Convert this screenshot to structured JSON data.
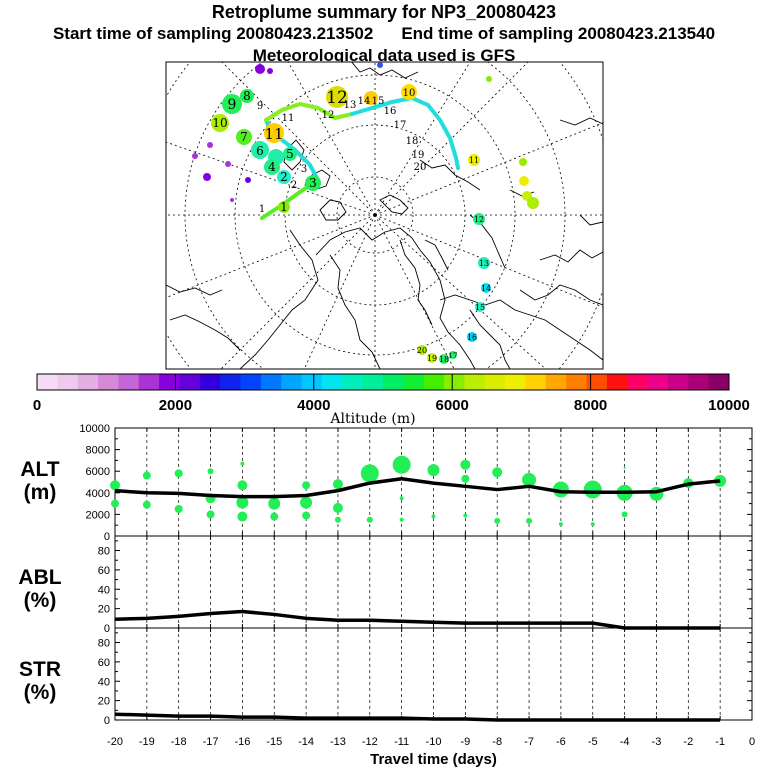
{
  "title": "Retroplume summary for NP3_20080423",
  "start_label": "Start time of sampling 20080423.213502",
  "end_label": "End time of sampling 20080423.213540",
  "met_label": "Meteorological data used is GFS",
  "colors": {
    "marker": "#22ee55",
    "line": "#000000",
    "plume_cyan": "#22dddd",
    "plume_yellow": "#dddd22"
  },
  "colorbar": {
    "colors": [
      "#f6dcf6",
      "#eecbee",
      "#e2b0e2",
      "#d68ad6",
      "#c466d8",
      "#aa33d8",
      "#8800dd",
      "#6600dd",
      "#3300dd",
      "#1122ee",
      "#0044ff",
      "#0077ff",
      "#00a5ff",
      "#00c8ff",
      "#00e5ee",
      "#00eebb",
      "#00ee99",
      "#00ee66",
      "#11ee33",
      "#44ee00",
      "#88ee00",
      "#bbee00",
      "#dded00",
      "#eeee00",
      "#ffd200",
      "#ffa800",
      "#ff7e00",
      "#ff4e00",
      "#ff1111",
      "#ff0066",
      "#ee0088",
      "#cc0088",
      "#aa0077",
      "#880066"
    ],
    "tick_labels": [
      "0",
      "2000",
      "4000",
      "6000",
      "8000",
      "10000"
    ],
    "label": "Altitude (m)"
  },
  "map": {
    "days_black": [
      "9",
      "11",
      "12",
      "13",
      "14",
      "15",
      "16",
      "17",
      "18",
      "19",
      "20",
      "2",
      "3",
      "1"
    ],
    "days_colored": [
      "12",
      "9",
      "8",
      "10",
      "11",
      "7",
      "6",
      "5",
      "4",
      "3",
      "2",
      "1",
      "10",
      "11",
      "12",
      "13",
      "14",
      "15",
      "16",
      "17",
      "18",
      "19",
      "20"
    ]
  },
  "chart_data": [
    {
      "type": "scatter",
      "name": "ALT",
      "ylabel": "ALT\n(m)",
      "ylabel_lines": [
        "ALT",
        "(m)"
      ],
      "xlabel": "Travel time (days)",
      "xlim": [
        -20,
        0
      ],
      "ylim": [
        0,
        10000
      ],
      "yticks": [
        "0",
        "2000",
        "4000",
        "6000",
        "8000",
        "10000"
      ],
      "xticks": [
        "-20",
        "-19",
        "-18",
        "-17",
        "-16",
        "-15",
        "-14",
        "-13",
        "-12",
        "-11",
        "-10",
        "-9",
        "-8",
        "-7",
        "-6",
        "-5",
        "-4",
        "-3",
        "-2",
        "-1",
        "0"
      ],
      "mean_line": {
        "x": [
          -20,
          -19,
          -18,
          -17,
          -16,
          -15,
          -14,
          -13,
          -12,
          -11,
          -10,
          -9,
          -8,
          -7,
          -6,
          -5,
          -4,
          -3,
          -2,
          -1
        ],
        "y": [
          4200,
          4000,
          3950,
          3750,
          3650,
          3650,
          3750,
          4200,
          4900,
          5300,
          4900,
          4600,
          4300,
          4600,
          4100,
          4050,
          4050,
          4100,
          4800,
          5100
        ]
      },
      "points": [
        {
          "x": -20,
          "y": 4700,
          "s": 5
        },
        {
          "x": -20,
          "y": 3000,
          "s": 4
        },
        {
          "x": -19,
          "y": 5600,
          "s": 4
        },
        {
          "x": -19,
          "y": 2900,
          "s": 4
        },
        {
          "x": -18,
          "y": 5800,
          "s": 4
        },
        {
          "x": -18,
          "y": 2500,
          "s": 4
        },
        {
          "x": -17,
          "y": 6000,
          "s": 3
        },
        {
          "x": -17,
          "y": 3500,
          "s": 5
        },
        {
          "x": -17,
          "y": 2000,
          "s": 4
        },
        {
          "x": -16,
          "y": 6700,
          "s": 2
        },
        {
          "x": -16,
          "y": 4700,
          "s": 5
        },
        {
          "x": -16,
          "y": 3100,
          "s": 6
        },
        {
          "x": -16,
          "y": 1800,
          "s": 5
        },
        {
          "x": -15,
          "y": 3000,
          "s": 6
        },
        {
          "x": -15,
          "y": 1800,
          "s": 4
        },
        {
          "x": -14,
          "y": 4700,
          "s": 4
        },
        {
          "x": -14,
          "y": 3100,
          "s": 6
        },
        {
          "x": -14,
          "y": 1900,
          "s": 4
        },
        {
          "x": -13,
          "y": 4800,
          "s": 5
        },
        {
          "x": -13,
          "y": 2600,
          "s": 5
        },
        {
          "x": -13,
          "y": 1500,
          "s": 3
        },
        {
          "x": -12,
          "y": 5800,
          "s": 9
        },
        {
          "x": -12,
          "y": 1500,
          "s": 3
        },
        {
          "x": -11,
          "y": 6600,
          "s": 9
        },
        {
          "x": -11,
          "y": 3500,
          "s": 2
        },
        {
          "x": -11,
          "y": 1500,
          "s": 2
        },
        {
          "x": -10,
          "y": 6100,
          "s": 6
        },
        {
          "x": -10,
          "y": 1800,
          "s": 2
        },
        {
          "x": -9,
          "y": 6600,
          "s": 5
        },
        {
          "x": -9,
          "y": 5300,
          "s": 4
        },
        {
          "x": -9,
          "y": 1900,
          "s": 2
        },
        {
          "x": -8,
          "y": 5900,
          "s": 5
        },
        {
          "x": -8,
          "y": 1400,
          "s": 3
        },
        {
          "x": -7,
          "y": 5200,
          "s": 7
        },
        {
          "x": -7,
          "y": 1400,
          "s": 3
        },
        {
          "x": -6,
          "y": 4300,
          "s": 8
        },
        {
          "x": -6,
          "y": 1100,
          "s": 2
        },
        {
          "x": -5,
          "y": 4300,
          "s": 9
        },
        {
          "x": -5,
          "y": 1100,
          "s": 2
        },
        {
          "x": -4,
          "y": 6300,
          "s": 1
        },
        {
          "x": -4,
          "y": 4000,
          "s": 8
        },
        {
          "x": -4,
          "y": 2000,
          "s": 3
        },
        {
          "x": -3,
          "y": 3900,
          "s": 7
        },
        {
          "x": -2,
          "y": 4900,
          "s": 5
        },
        {
          "x": -1,
          "y": 5100,
          "s": 6
        }
      ]
    },
    {
      "type": "line",
      "name": "ABL",
      "ylabel_lines": [
        "ABL",
        "(%)"
      ],
      "xlim": [
        -20,
        0
      ],
      "ylim": [
        0,
        95
      ],
      "yticks": [
        "0",
        "20",
        "40",
        "60",
        "80"
      ],
      "x": [
        -20,
        -19,
        -18,
        -17,
        -16,
        -15,
        -14,
        -13,
        -12,
        -11,
        -10,
        -9,
        -8,
        -7,
        -6,
        -5,
        -4,
        -3,
        -2,
        -1
      ],
      "y": [
        9,
        10,
        12,
        15,
        17,
        14,
        10,
        8,
        8,
        7,
        6,
        5,
        5,
        5,
        5,
        5,
        0,
        0,
        0,
        0
      ]
    },
    {
      "type": "line",
      "name": "STR",
      "ylabel_lines": [
        "STR",
        "(%)"
      ],
      "xlim": [
        -20,
        0
      ],
      "ylim": [
        0,
        95
      ],
      "yticks": [
        "0",
        "20",
        "40",
        "60",
        "80"
      ],
      "x": [
        -20,
        -19,
        -18,
        -17,
        -16,
        -15,
        -14,
        -13,
        -12,
        -11,
        -10,
        -9,
        -8,
        -7,
        -6,
        -5,
        -4,
        -3,
        -2,
        -1
      ],
      "y": [
        6,
        5,
        4,
        4,
        3,
        3,
        2,
        2,
        2,
        2,
        1,
        1,
        0,
        0,
        0,
        0,
        0,
        0,
        0,
        0
      ]
    }
  ]
}
